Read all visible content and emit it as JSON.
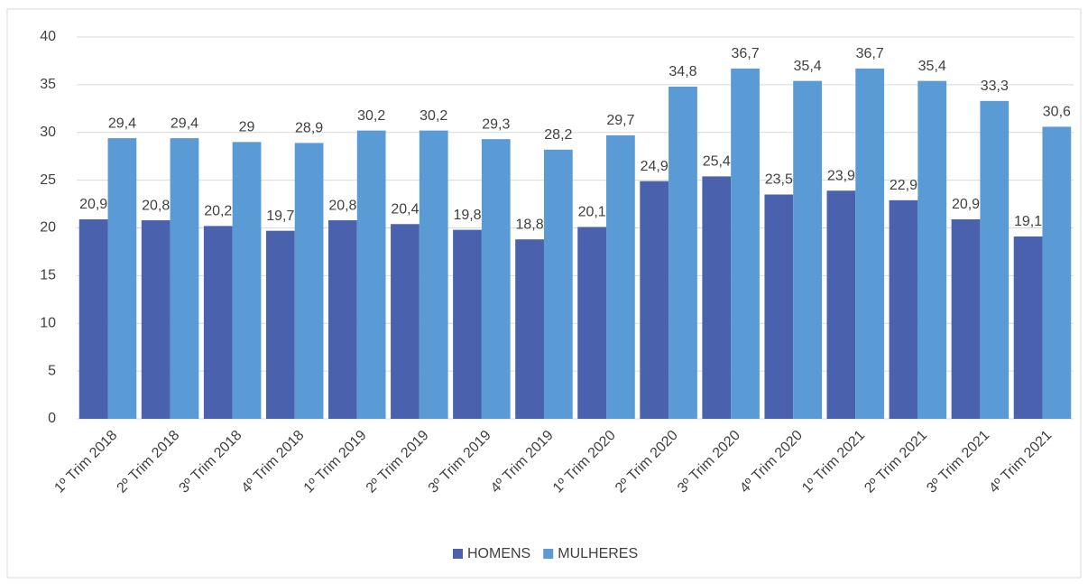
{
  "chart_data": {
    "type": "bar",
    "categories": [
      "1º Trim 2018",
      "2º Trim 2018",
      "3º Trim 2018",
      "4º Trim 2018",
      "1º Trim 2019",
      "2º Trim 2019",
      "3º Trim 2019",
      "4º Trim 2019",
      "1º Trim 2020",
      "2º Trim 2020",
      "3º Trim 2020",
      "4º Trim 2020",
      "1º Trim 2021",
      "2º Trim 2021",
      "3º Trim 2021",
      "4º Trim 2021"
    ],
    "series": [
      {
        "name": "HOMENS",
        "color": "#4a62ad",
        "values": [
          20.9,
          20.8,
          20.2,
          19.7,
          20.8,
          20.4,
          19.8,
          18.8,
          20.1,
          24.9,
          25.4,
          23.5,
          23.9,
          22.9,
          20.9,
          19.1
        ],
        "value_labels": [
          "20,9",
          "20,8",
          "20,2",
          "19,7",
          "20,8",
          "20,4",
          "19,8",
          "18,8",
          "20,1",
          "24,9",
          "25,4",
          "23,5",
          "23,9",
          "22,9",
          "20,9",
          "19,1"
        ]
      },
      {
        "name": "MULHERES",
        "color": "#5b9bd5",
        "values": [
          29.4,
          29.4,
          29,
          28.9,
          30.2,
          30.2,
          29.3,
          28.2,
          29.7,
          34.8,
          36.7,
          35.4,
          36.7,
          35.4,
          33.3,
          30.6
        ],
        "value_labels": [
          "29,4",
          "29,4",
          "29",
          "28,9",
          "30,2",
          "30,2",
          "29,3",
          "28,2",
          "29,7",
          "34,8",
          "36,7",
          "35,4",
          "36,7",
          "35,4",
          "33,3",
          "30,6"
        ]
      }
    ],
    "ylim": [
      0,
      40
    ],
    "yticks": [
      0,
      5,
      10,
      15,
      20,
      25,
      30,
      35,
      40
    ],
    "grid": true,
    "legend": "bottom"
  }
}
